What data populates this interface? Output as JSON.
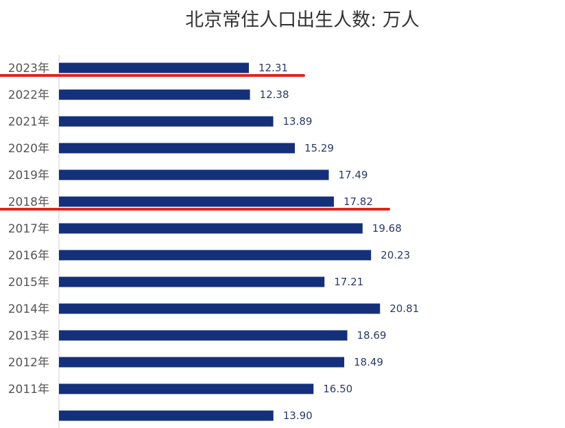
{
  "chart_data": {
    "type": "bar",
    "orientation": "horizontal",
    "title": "北京常住人口出生人数: 万人",
    "unit": "万人",
    "categories": [
      "2023年",
      "2022年",
      "2021年",
      "2020年",
      "2019年",
      "2018年",
      "2017年",
      "2016年",
      "2015年",
      "2014年",
      "2013年",
      "2012年",
      "2011年",
      ""
    ],
    "values": [
      12.31,
      12.38,
      13.89,
      15.29,
      17.49,
      17.82,
      19.68,
      20.23,
      17.21,
      20.81,
      18.69,
      18.49,
      16.5,
      13.9
    ],
    "value_labels": [
      "12.31",
      "12.38",
      "13.89",
      "15.29",
      "17.49",
      "17.82",
      "19.68",
      "20.23",
      "17.21",
      "20.81",
      "18.69",
      "18.49",
      "16.50",
      "13.90"
    ],
    "bar_color": "#14307a",
    "highlight_color": "#e2231a",
    "highlighted_categories": [
      "2023年",
      "2018年"
    ],
    "xlim": [
      0,
      22
    ]
  }
}
